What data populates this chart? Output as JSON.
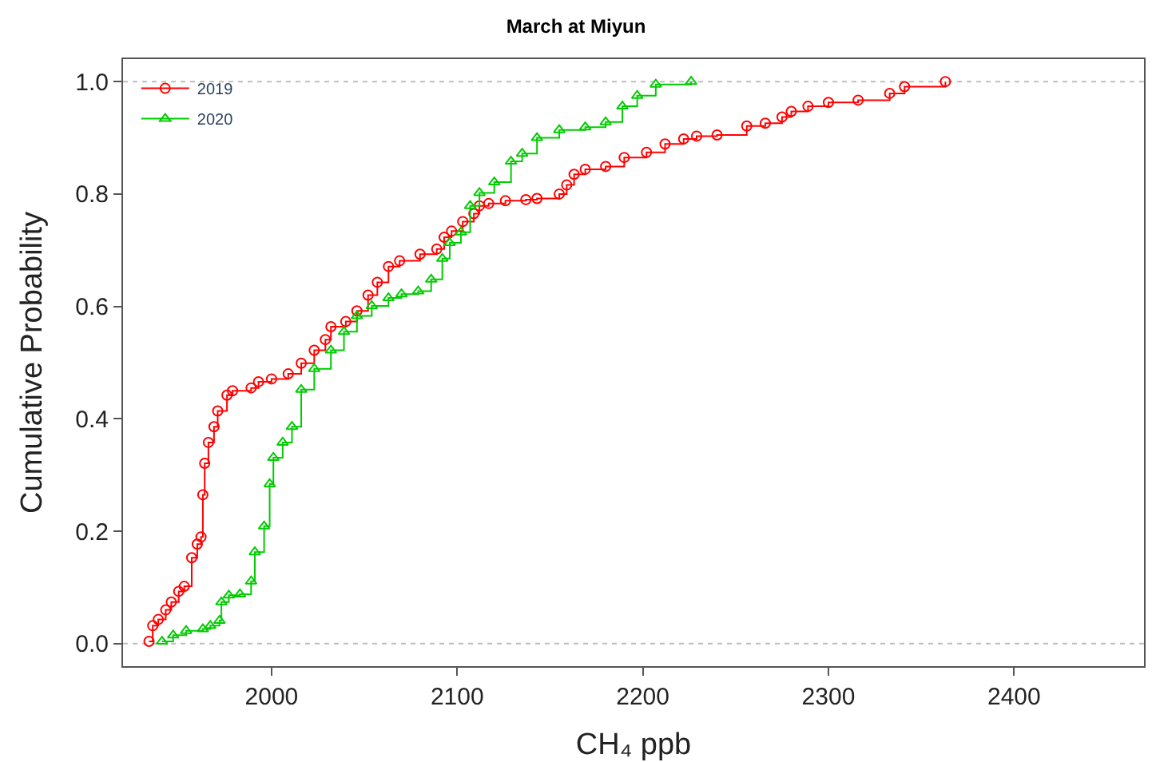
{
  "chart_data": {
    "type": "step",
    "title": "March at Miyun",
    "xlabel": "CH₄ ppb",
    "ylabel": "Cumulative Probability",
    "xlim": [
      1920,
      2470
    ],
    "ylim": [
      -0.04,
      1.04
    ],
    "xticks": [
      2000,
      2100,
      2200,
      2300,
      2400
    ],
    "yticks": [
      {
        "value": 0,
        "label": "0.0"
      },
      {
        "value": 0.2,
        "label": "0.2"
      },
      {
        "value": 0.4,
        "label": "0.4"
      },
      {
        "value": 0.6,
        "label": "0.6"
      },
      {
        "value": 0.8,
        "label": "0.8"
      },
      {
        "value": 1,
        "label": "1.0"
      }
    ],
    "grid": false,
    "legend": "top left",
    "ref_lines": [
      {
        "axis": "y",
        "value": 0,
        "color": "#bebebe",
        "line_style": "dotted"
      },
      {
        "axis": "y",
        "value": 1,
        "color": "#bebebe",
        "line_style": "dotted"
      }
    ],
    "series": [
      {
        "name": "2019",
        "color": "#ff0000",
        "marker": "circle",
        "x": [
          1934,
          1936,
          1939,
          1943,
          1946,
          1950,
          1953,
          1957,
          1960,
          1962,
          1963,
          1964,
          1966,
          1969,
          1971,
          1976,
          1979,
          1989,
          1993,
          2000,
          2009,
          2016,
          2023,
          2029,
          2032,
          2040,
          2046,
          2052,
          2057,
          2063,
          2069,
          2080,
          2089,
          2093,
          2097,
          2103,
          2109,
          2112,
          2117,
          2126,
          2137,
          2143,
          2155,
          2159,
          2163,
          2169,
          2180,
          2190,
          2202,
          2212,
          2222,
          2229,
          2240,
          2256,
          2266,
          2275,
          2280,
          2289,
          2300,
          2316,
          2333,
          2341,
          2363
        ],
        "values": [
          0.004,
          0.032,
          0.043,
          0.06,
          0.074,
          0.093,
          0.102,
          0.153,
          0.177,
          0.19,
          0.265,
          0.321,
          0.358,
          0.386,
          0.414,
          0.442,
          0.45,
          0.455,
          0.466,
          0.471,
          0.48,
          0.499,
          0.522,
          0.541,
          0.564,
          0.573,
          0.592,
          0.62,
          0.643,
          0.671,
          0.681,
          0.693,
          0.702,
          0.723,
          0.734,
          0.751,
          0.765,
          0.779,
          0.783,
          0.788,
          0.79,
          0.792,
          0.8,
          0.816,
          0.835,
          0.844,
          0.849,
          0.865,
          0.874,
          0.889,
          0.898,
          0.903,
          0.905,
          0.921,
          0.926,
          0.937,
          0.947,
          0.956,
          0.963,
          0.967,
          0.979,
          0.991,
          1.0
        ]
      },
      {
        "name": "2020",
        "color": "#00cc00",
        "marker": "triangle",
        "x": [
          1941,
          1947,
          1954,
          1963,
          1967,
          1972,
          1973,
          1977,
          1983,
          1989,
          1991,
          1996,
          1999,
          2001,
          2006,
          2011,
          2016,
          2023,
          2032,
          2039,
          2046,
          2054,
          2063,
          2070,
          2079,
          2086,
          2092,
          2096,
          2102,
          2107,
          2112,
          2120,
          2129,
          2135,
          2143,
          2155,
          2169,
          2180,
          2189,
          2197,
          2207,
          2226
        ],
        "values": [
          0.004,
          0.015,
          0.023,
          0.026,
          0.032,
          0.041,
          0.074,
          0.086,
          0.088,
          0.111,
          0.163,
          0.209,
          0.284,
          0.331,
          0.358,
          0.386,
          0.452,
          0.489,
          0.522,
          0.555,
          0.583,
          0.601,
          0.615,
          0.622,
          0.627,
          0.648,
          0.685,
          0.713,
          0.732,
          0.779,
          0.802,
          0.821,
          0.858,
          0.872,
          0.9,
          0.914,
          0.919,
          0.928,
          0.956,
          0.975,
          0.995,
          1.0
        ]
      }
    ]
  }
}
